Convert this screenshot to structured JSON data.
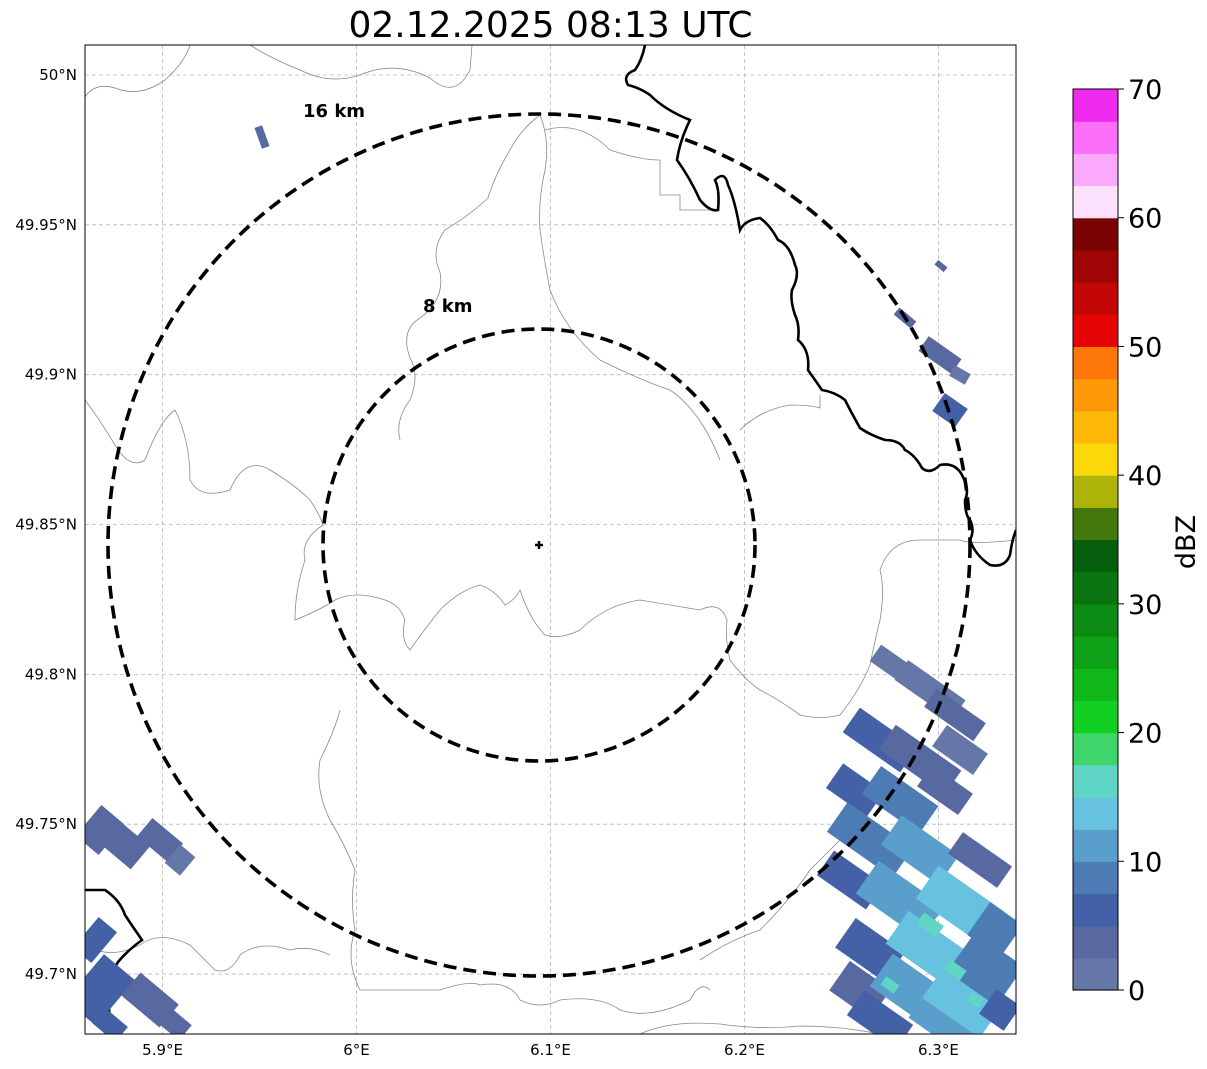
{
  "title": "02.12.2025 08:13 UTC",
  "map": {
    "lat_ticks": [
      {
        "value": 50.0,
        "label": "50°N"
      },
      {
        "value": 49.95,
        "label": "49.95°N"
      },
      {
        "value": 49.9,
        "label": "49.9°N"
      },
      {
        "value": 49.85,
        "label": "49.85°N"
      },
      {
        "value": 49.8,
        "label": "49.8°N"
      },
      {
        "value": 49.75,
        "label": "49.75°N"
      },
      {
        "value": 49.7,
        "label": "49.7°N"
      }
    ],
    "lon_ticks": [
      {
        "value": 5.9,
        "label": "5.9°E"
      },
      {
        "value": 6.0,
        "label": "6°E"
      },
      {
        "value": 6.1,
        "label": "6.1°E"
      },
      {
        "value": 6.2,
        "label": "6.2°E"
      },
      {
        "value": 6.3,
        "label": "6.3°E"
      }
    ],
    "lon_range": [
      5.86,
      6.34
    ],
    "lat_range": [
      49.68,
      50.01
    ],
    "gridlines": true,
    "radar_center": {
      "lon": 6.095,
      "lat": 49.843
    },
    "range_rings": [
      {
        "radius_km": 8,
        "label": "8 km"
      },
      {
        "radius_km": 16,
        "label": "16 km"
      }
    ]
  },
  "colorbar": {
    "label": "dBZ",
    "min": 0,
    "max": 70,
    "tick_values": [
      0,
      10,
      20,
      30,
      40,
      50,
      60,
      70
    ],
    "tick_labels": [
      "0",
      "10",
      "20",
      "30",
      "40",
      "50",
      "60",
      "70"
    ],
    "colors": [
      "#6577a6",
      "#5868a0",
      "#4460a6",
      "#4c7cb3",
      "#5a9fcb",
      "#66c2de",
      "#5fd5c5",
      "#3ed66a",
      "#12d021",
      "#11b81a",
      "#0ea017",
      "#0b8a14",
      "#0a7411",
      "#065f0c",
      "#45780c",
      "#aeb30a",
      "#fdd808",
      "#fdb808",
      "#fd9808",
      "#fd7808",
      "#e60505",
      "#c20505",
      "#a00404",
      "#7a0303",
      "#fbe1fb",
      "#fbaafb",
      "#fb6ffb",
      "#ee2bee"
    ]
  }
}
